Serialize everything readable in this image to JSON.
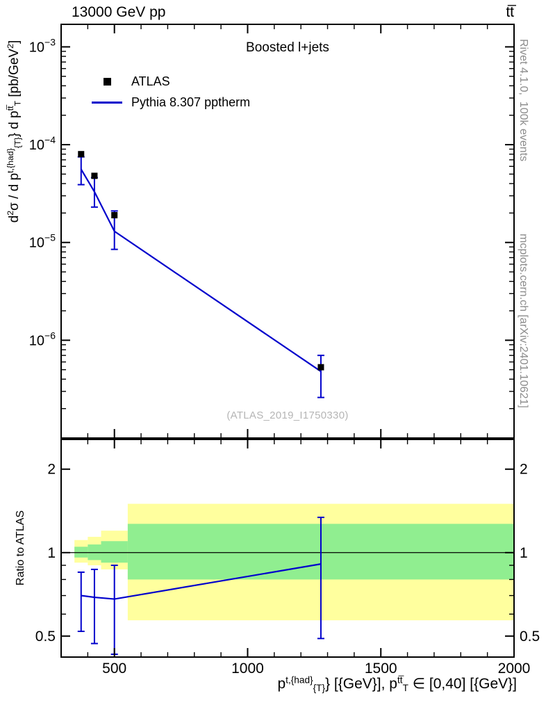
{
  "header": {
    "left": "13000 GeV pp",
    "right": "tt̅"
  },
  "labels": {
    "ylabel_main_html": "d<sup>2</sup>σ / d p<sup>t,{had}</sup><sub>{T}</sub>} d p<sup>tt&#773;</sup><sub>T</sub> [pb/GeV<sup>2</sup>]",
    "ylabel_ratio": "Ratio to ATLAS",
    "xlabel_html": "p<sup>t,{had}</sup><sub>{T}</sub>} [{GeV}], p<sup>tt&#773;</sup><sub>T</sub> ∈ [0,40] [{GeV}]",
    "watermark": "(ATLAS_2019_I1750330)",
    "note_right_top": "Rivet 4.1.0,  100k events",
    "note_right_bottom": "mcplots.cern.ch [arXiv:2401.10621]"
  },
  "colors": {
    "frame": "#000000",
    "watermark": "#b5b5b5",
    "side_note": "#8c8c8c"
  },
  "chart_data": {
    "type": "line",
    "title": "Boosted l+jets",
    "xlabel": "pT^{t,had} [GeV], pT^{ttbar} in [0,40] [GeV]",
    "xlim": [
      300,
      2000
    ],
    "x_ticks": [
      500,
      1000,
      1500,
      2000
    ],
    "x_minor_step": 100,
    "legend_position": "top-left",
    "main": {
      "ylabel": "d2sigma / d pT^{t,had} d pT^{ttbar} [pb/GeV^2]",
      "yscale": "log",
      "ylim": [
        1e-07,
        0.0017
      ],
      "y_tick_exponents": [
        -3,
        -4,
        -5,
        -6
      ],
      "series": [
        {
          "name": "ATLAS",
          "type": "points",
          "marker": "square",
          "color": "#000000",
          "x": [
            375,
            425,
            500,
            1275
          ],
          "y": [
            8e-05,
            4.8e-05,
            1.9e-05,
            5.3e-07
          ]
        },
        {
          "name": "Pythia 8.307 pptherm",
          "type": "line+errorbars",
          "color": "#0000cc",
          "x": [
            375,
            425,
            500,
            1275
          ],
          "y": [
            5.6e-05,
            3.3e-05,
            1.3e-05,
            4.8e-07
          ],
          "y_lo": [
            3.9e-05,
            2.3e-05,
            8.5e-06,
            2.6e-07
          ],
          "y_hi": [
            7.5e-05,
            4.6e-05,
            2.1e-05,
            7e-07
          ]
        }
      ]
    },
    "ratio": {
      "ylabel": "Ratio to ATLAS",
      "yscale": "log",
      "ylim": [
        0.42,
        2.56
      ],
      "y_ticks": [
        0.5,
        1,
        2
      ],
      "reference_line": 1,
      "bin_edges": [
        350,
        400,
        450,
        550,
        2000
      ],
      "x": [
        375,
        425,
        500,
        1275
      ],
      "y": [
        0.7,
        0.69,
        0.68,
        0.91
      ],
      "y_lo": [
        0.52,
        0.47,
        0.43,
        0.49
      ],
      "y_hi": [
        0.85,
        0.87,
        0.9,
        1.34
      ],
      "band_outer": {
        "color": "#ffff9e",
        "ranges": [
          [
            0.92,
            1.11
          ],
          [
            0.9,
            1.14
          ],
          [
            0.87,
            1.2
          ],
          [
            0.57,
            1.5
          ]
        ]
      },
      "band_inner": {
        "color": "#90ee90",
        "ranges": [
          [
            0.96,
            1.05
          ],
          [
            0.94,
            1.07
          ],
          [
            0.92,
            1.1
          ],
          [
            0.8,
            1.27
          ]
        ]
      }
    }
  }
}
